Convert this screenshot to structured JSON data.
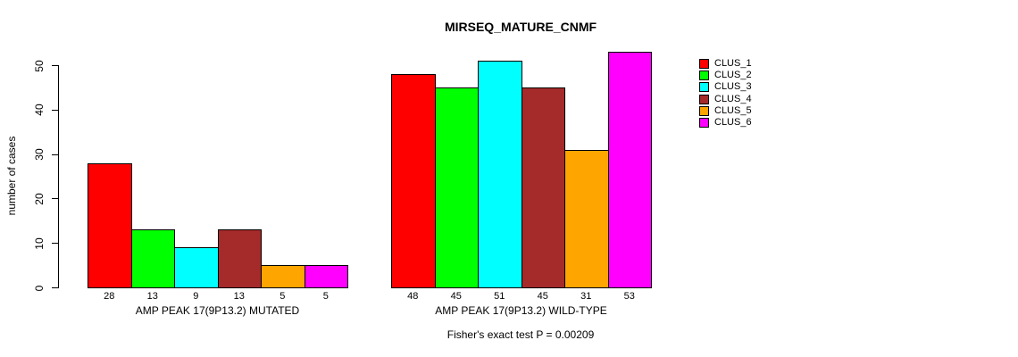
{
  "title": "MIRSEQ_MATURE_CNMF",
  "annotation": "Fisher's exact test P = 0.00209",
  "ylabel": "number of cases",
  "legend": {
    "position": "right",
    "items": [
      {
        "label": "CLUS_1",
        "color": "#FF0000"
      },
      {
        "label": "CLUS_2",
        "color": "#00FF00"
      },
      {
        "label": "CLUS_3",
        "color": "#00FFFF"
      },
      {
        "label": "CLUS_4",
        "color": "#A52A2A"
      },
      {
        "label": "CLUS_5",
        "color": "#FFA500"
      },
      {
        "label": "CLUS_6",
        "color": "#FF00FF"
      }
    ]
  },
  "chart_data": {
    "type": "bar",
    "title": "MIRSEQ_MATURE_CNMF",
    "xlabel": "",
    "ylabel": "number of cases",
    "ylim": [
      0,
      50
    ],
    "yticks": [
      0,
      10,
      20,
      30,
      40,
      50
    ],
    "grid": false,
    "legend_position": "right",
    "categories": [
      "AMP PEAK 17(9P13.2) MUTATED",
      "AMP PEAK 17(9P13.2) WILD-TYPE"
    ],
    "series": [
      {
        "name": "CLUS_1",
        "color": "#FF0000",
        "values": [
          28,
          48
        ]
      },
      {
        "name": "CLUS_2",
        "color": "#00FF00",
        "values": [
          13,
          45
        ]
      },
      {
        "name": "CLUS_3",
        "color": "#00FFFF",
        "values": [
          9,
          51
        ]
      },
      {
        "name": "CLUS_4",
        "color": "#A52A2A",
        "values": [
          13,
          45
        ]
      },
      {
        "name": "CLUS_5",
        "color": "#FFA500",
        "values": [
          5,
          31
        ]
      },
      {
        "name": "CLUS_6",
        "color": "#FF00FF",
        "values": [
          5,
          53
        ]
      }
    ],
    "bar_value_labels": true,
    "annotation": "Fisher's exact test P = 0.00209"
  }
}
